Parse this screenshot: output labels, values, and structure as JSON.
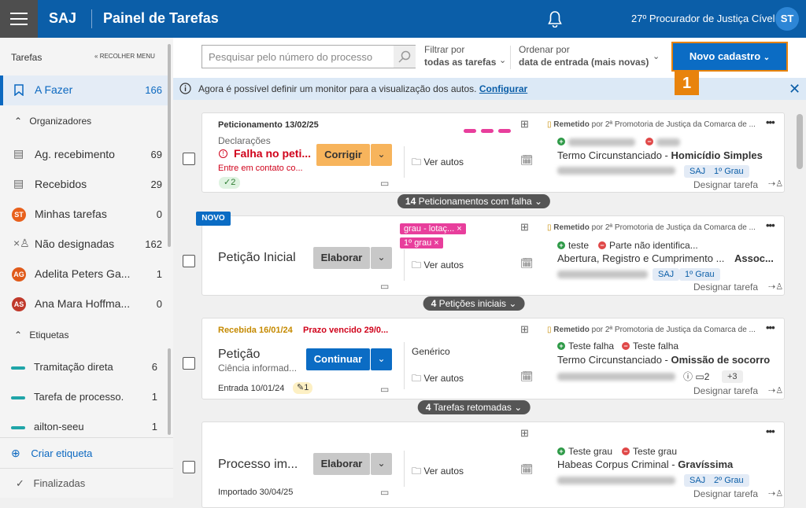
{
  "header": {
    "app": "SAJ",
    "title": "Painel de Tarefas",
    "user": "27º Procurador de Justiça Cível",
    "avatar": "ST"
  },
  "sidebar": {
    "title": "Tarefas",
    "collapse": "RECOLHER MENU",
    "todo": {
      "label": "A Fazer",
      "count": 166
    },
    "organizers": {
      "title": "Organizadores",
      "items": [
        {
          "label": "Ag. recebimento",
          "count": 69
        },
        {
          "label": "Recebidos",
          "count": 29
        },
        {
          "avatar": "ST",
          "label": "Minhas tarefas",
          "count": 0
        },
        {
          "label": "Não designadas",
          "count": 162
        },
        {
          "avatar": "AG",
          "label": "Adelita Peters Ga...",
          "count": 1
        },
        {
          "avatar": "AS",
          "label": "Ana Mara Hoffma...",
          "count": 0
        }
      ]
    },
    "tags": {
      "title": "Etiquetas",
      "items": [
        {
          "label": "Tramitação direta",
          "count": 6
        },
        {
          "label": "Tarefa de processo.",
          "count": 1
        },
        {
          "label": "ailton-seeu",
          "count": 1
        }
      ]
    },
    "create_tag": "Criar etiqueta",
    "finished": "Finalizadas"
  },
  "toolbar": {
    "search_placeholder": "Pesquisar pelo número do processo",
    "filter_label": "Filtrar por",
    "filter_value": "todas as tarefas",
    "sort_label": "Ordenar por",
    "sort_value": "data de entrada (mais novas)",
    "new_button": "Novo cadastro",
    "step_badge": 1
  },
  "notice": {
    "text": "Agora é possível definir um monitor para a visualização dos autos.",
    "link": "Configurar"
  },
  "cards": [
    {
      "origin": "Peticionamento 13/02/25",
      "subtitle": "Declarações",
      "status": "Falha no peti...",
      "status_detail": "Entre em contato co...",
      "badge": 2,
      "action": "Corrigir",
      "view": "Ver autos",
      "sender_status": "Remetido",
      "sender": "por 2ª Promotoria de Justiça da Comarca de ...",
      "class_name": "Termo Circunstanciado -",
      "subject": "Homicídio Simples",
      "tags": [
        "SAJ",
        "1º Grau"
      ],
      "assign": "Designar tarefa"
    },
    {
      "flag": "NOVO",
      "title": "Petição Inicial",
      "action": "Elaborar",
      "labels": [
        "grau - lotaç...",
        "1º grau"
      ],
      "view": "Ver autos",
      "sender_status": "Remetido",
      "sender": "por 2ª Promotoria de Justiça da Comarca de ...",
      "party_active": "teste",
      "party_passive": "Parte não identifica...",
      "class_name": "Abertura, Registro e Cumprimento ...",
      "subject": "Assoc...",
      "tags": [
        "SAJ",
        "1º Grau"
      ],
      "assign": "Designar tarefa"
    },
    {
      "received": "Recebida 16/01/24",
      "deadline": "Prazo vencido 29/0...",
      "title": "Petição",
      "subtitle": "Ciência informad...",
      "action": "Continuar",
      "entry": "Entrada 10/01/24",
      "badge": 1,
      "category": "Genérico",
      "view": "Ver autos",
      "sender_status": "Remetido",
      "sender": "por 2ª Promotoria de Justiça da Comarca de ...",
      "party_active": "Teste falha",
      "party_passive": "Teste falha",
      "class_name": "Termo Circunstanciado -",
      "subject": "Omissão de socorro",
      "attachments": 2,
      "more": "+3",
      "assign": "Designar tarefa"
    },
    {
      "title": "Processo im...",
      "action": "Elaborar",
      "entry": "Importado 30/04/25",
      "view": "Ver autos",
      "party_active": "Teste grau",
      "party_passive": "Teste grau",
      "class_name": "Habeas Corpus Criminal -",
      "subject": "Gravíssima",
      "tags": [
        "SAJ",
        "2º Grau"
      ],
      "assign": "Designar tarefa"
    }
  ],
  "groups": [
    {
      "count": 14,
      "label": "Peticionamentos com falha"
    },
    {
      "count": 4,
      "label": "Petições iniciais"
    },
    {
      "count": 4,
      "label": "Tarefas retomadas"
    }
  ]
}
